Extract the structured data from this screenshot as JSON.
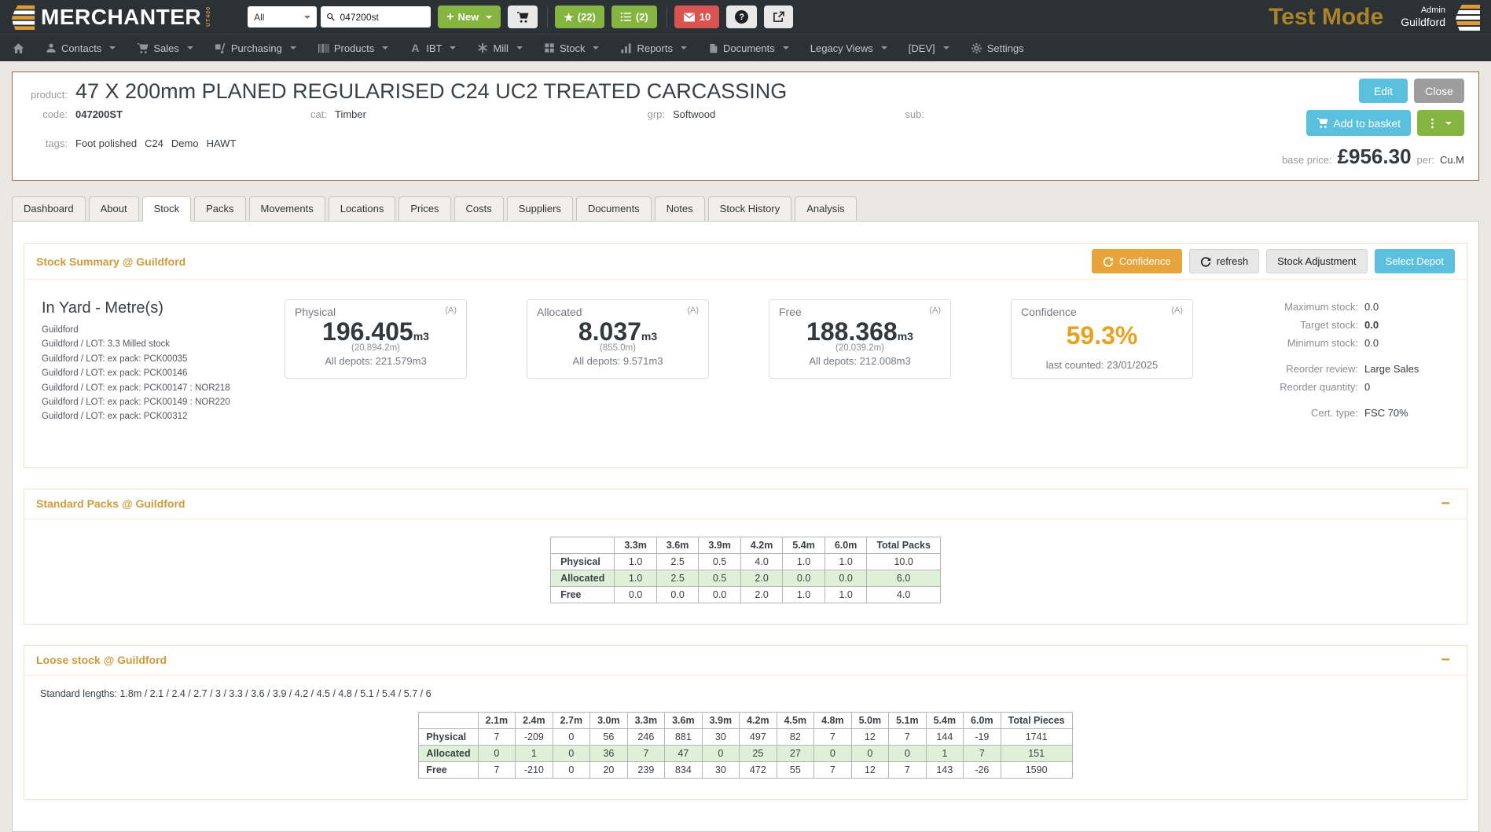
{
  "topbar": {
    "brand": "MERCHANTER",
    "brand_sub": "UT400",
    "search": {
      "scope": "All",
      "value": "047200st"
    },
    "new_label": "New",
    "fav_count": "(22)",
    "list_count": "(2)",
    "mail_count": "10",
    "test_mode": "Test Mode",
    "user_role": "Admin",
    "user_depot": "Guildford"
  },
  "nav": {
    "items": [
      {
        "name": "home",
        "icon": "home-icon",
        "label": "",
        "caret": false
      },
      {
        "name": "contacts",
        "icon": "user-icon",
        "label": "Contacts",
        "caret": true
      },
      {
        "name": "sales",
        "icon": "cart-icon",
        "label": "Sales",
        "caret": true
      },
      {
        "name": "purchasing",
        "icon": "handtruck-icon",
        "label": "Purchasing",
        "caret": true
      },
      {
        "name": "products",
        "icon": "barcode-icon",
        "label": "Products",
        "caret": true
      },
      {
        "name": "ibt",
        "icon": "letter-a-icon",
        "label": "IBT",
        "caret": true
      },
      {
        "name": "mill",
        "icon": "asterisk-icon",
        "label": "Mill",
        "caret": true
      },
      {
        "name": "stock",
        "icon": "grid-icon",
        "label": "Stock",
        "caret": true
      },
      {
        "name": "reports",
        "icon": "bar-chart-icon",
        "label": "Reports",
        "caret": true
      },
      {
        "name": "documents",
        "icon": "file-icon",
        "label": "Documents",
        "caret": true
      },
      {
        "name": "legacy",
        "icon": "",
        "label": "Legacy Views",
        "caret": true
      },
      {
        "name": "dev",
        "icon": "",
        "label": "[DEV]",
        "caret": true
      },
      {
        "name": "settings",
        "icon": "gear-icon",
        "label": "Settings",
        "caret": false
      }
    ]
  },
  "product": {
    "label": "product:",
    "title": "47 X 200mm PLANED REGULARISED C24 UC2 TREATED CARCASSING",
    "code_label": "code:",
    "code": "047200ST",
    "cat_label": "cat:",
    "cat": "Timber",
    "grp_label": "grp:",
    "grp": "Softwood",
    "sub_label": "sub:",
    "tags_label": "tags:",
    "tags": [
      "Foot polished",
      "C24",
      "Demo",
      "HAWT"
    ],
    "edit_label": "Edit",
    "close_label": "Close",
    "add_to_basket_label": "Add to basket",
    "base_price_label": "base price:",
    "base_price": "£956.30",
    "per_label": "per:",
    "per_unit": "Cu.M"
  },
  "tabs": {
    "active": "Stock",
    "items": [
      "Dashboard",
      "About",
      "Stock",
      "Packs",
      "Movements",
      "Locations",
      "Prices",
      "Costs",
      "Suppliers",
      "Documents",
      "Notes",
      "Stock History",
      "Analysis"
    ]
  },
  "summary": {
    "title": "Stock Summary @ Guildford",
    "buttons": {
      "confidence": "Confidence",
      "refresh": "refresh",
      "stock_adjustment": "Stock Adjustment",
      "select_depot": "Select Depot"
    },
    "in_yard": {
      "title": "In Yard - Metre(s)",
      "items": [
        "Guildford",
        "Guildford / LOT: 3.3 Milled stock",
        "Guildford / LOT: ex pack: PCK00035",
        "Guildford / LOT: ex pack: PCK00146",
        "Guildford / LOT: ex pack: PCK00147 : NOR218",
        "Guildford / LOT: ex pack: PCK00149 : NOR220",
        "Guildford / LOT: ex pack: PCK00312"
      ]
    },
    "cards": [
      {
        "title": "Physical",
        "flag": "(A)",
        "value": "196.405",
        "unit": "m3",
        "alt": "(20,894.2m)",
        "footer": "All depots: 221.579m3"
      },
      {
        "title": "Allocated",
        "flag": "(A)",
        "value": "8.037",
        "unit": "m3",
        "alt": "(855.0m)",
        "footer": "All depots: 9.571m3"
      },
      {
        "title": "Free",
        "flag": "(A)",
        "value": "188.368",
        "unit": "m3",
        "alt": "(20,039.2m)",
        "footer": "All depots: 212.008m3"
      },
      {
        "title": "Confidence",
        "flag": "(A)",
        "value": "59.3%",
        "footer": "last counted: 23/01/2025"
      }
    ],
    "stats": [
      {
        "label": "Maximum stock:",
        "value": "0.0",
        "bold": false
      },
      {
        "label": "Target stock:",
        "value": "0.0",
        "bold": true
      },
      {
        "label": "Minimum stock:",
        "value": "0.0",
        "bold": false
      },
      {
        "label": "Reorder review:",
        "value": "Large Sales",
        "bold": false
      },
      {
        "label": "Reorder quantity:",
        "value": "0",
        "bold": false
      },
      {
        "label": "Cert. type:",
        "value": "FSC 70%",
        "bold": false
      }
    ]
  },
  "standard_packs": {
    "title": "Standard Packs @ Guildford",
    "columns": [
      "",
      "3.3m",
      "3.6m",
      "3.9m",
      "4.2m",
      "5.4m",
      "6.0m",
      "Total Packs"
    ],
    "rows": [
      {
        "label": "Physical",
        "highlight": false,
        "values": [
          "1.0",
          "2.5",
          "0.5",
          "4.0",
          "1.0",
          "1.0",
          "10.0"
        ]
      },
      {
        "label": "Allocated",
        "highlight": true,
        "values": [
          "1.0",
          "2.5",
          "0.5",
          "2.0",
          "0.0",
          "0.0",
          "6.0"
        ]
      },
      {
        "label": "Free",
        "highlight": false,
        "values": [
          "0.0",
          "0.0",
          "0.0",
          "2.0",
          "1.0",
          "1.0",
          "4.0"
        ]
      }
    ]
  },
  "loose_stock": {
    "title": "Loose stock @ Guildford",
    "standard_lengths": "Standard lengths: 1.8m / 2.1 / 2.4 / 2.7 / 3 / 3.3 / 3.6 / 3.9 / 4.2 / 4.5 / 4.8 / 5.1 / 5.4 / 5.7 / 6",
    "columns": [
      "",
      "2.1m",
      "2.4m",
      "2.7m",
      "3.0m",
      "3.3m",
      "3.6m",
      "3.9m",
      "4.2m",
      "4.5m",
      "4.8m",
      "5.0m",
      "5.1m",
      "5.4m",
      "6.0m",
      "Total Pieces"
    ],
    "rows": [
      {
        "label": "Physical",
        "highlight": false,
        "values": [
          "7",
          "-209",
          "0",
          "56",
          "246",
          "881",
          "30",
          "497",
          "82",
          "7",
          "12",
          "7",
          "144",
          "-19",
          "1741"
        ]
      },
      {
        "label": "Allocated",
        "highlight": true,
        "values": [
          "0",
          "1",
          "0",
          "36",
          "7",
          "47",
          "0",
          "25",
          "27",
          "0",
          "0",
          "0",
          "1",
          "7",
          "151"
        ]
      },
      {
        "label": "Free",
        "highlight": false,
        "values": [
          "7",
          "-210",
          "0",
          "20",
          "239",
          "834",
          "30",
          "472",
          "55",
          "7",
          "12",
          "7",
          "143",
          "-26",
          "1590"
        ]
      }
    ]
  },
  "colors": {
    "topbar_bg": "#2c3136",
    "accent_green": "#85b440",
    "accent_blue": "#5bc0de",
    "accent_red": "#d9534f",
    "accent_amber": "#e8a33b",
    "section_title_orange": "#cf9b3a",
    "test_mode_gold": "#aa8427",
    "confidence_value": "#e9a21e",
    "highlight_row_green": "#dff0d8"
  }
}
